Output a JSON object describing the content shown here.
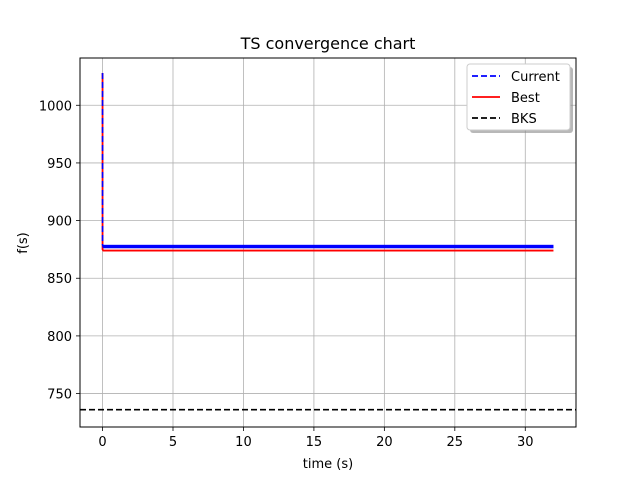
{
  "chart_data": {
    "type": "line",
    "title": "TS convergence chart",
    "xlabel": "time (s)",
    "ylabel": "f(s)",
    "xlim": [
      -1.6,
      33.6
    ],
    "ylim": [
      721,
      1041
    ],
    "xticks": [
      0,
      5,
      10,
      15,
      20,
      25,
      30
    ],
    "yticks": [
      750,
      800,
      850,
      900,
      950,
      1000
    ],
    "grid": true,
    "legend_position": "top-right",
    "series": [
      {
        "name": "Current",
        "color": "#0000ff",
        "style": "dashed",
        "x": [
          0,
          0,
          0.05,
          32
        ],
        "y": [
          1028,
          879,
          877,
          877
        ],
        "band": [
          876,
          879
        ]
      },
      {
        "name": "Best",
        "color": "#ff0000",
        "style": "solid",
        "x": [
          0,
          0,
          0.05,
          32
        ],
        "y": [
          1028,
          875,
          874,
          874
        ]
      },
      {
        "name": "BKS",
        "color": "#000000",
        "style": "dashed",
        "y_constant": 736
      }
    ]
  }
}
